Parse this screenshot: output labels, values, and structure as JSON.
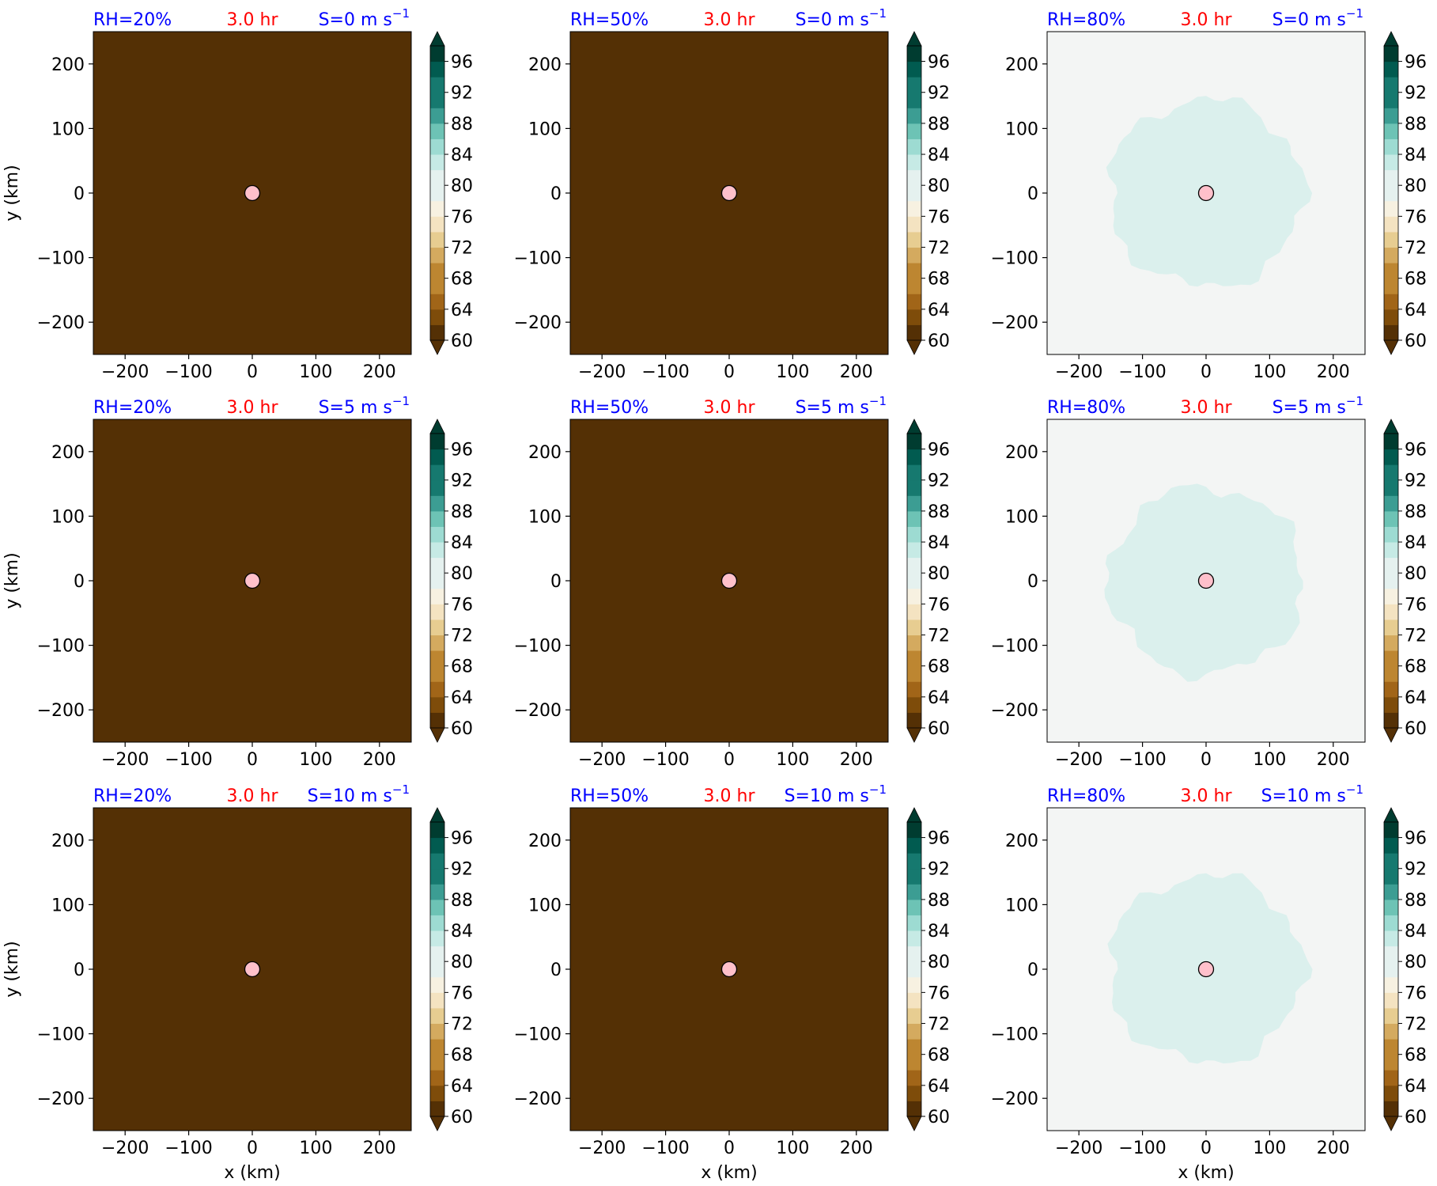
{
  "figure": {
    "xlabel": "x (km)",
    "ylabel": "y (km)",
    "time_label": "3.0 hr",
    "colors": {
      "header_blue": "#0000ff",
      "header_red": "#ff0000",
      "marker_fill": "#ffc0cb",
      "marker_edge": "#000000",
      "dry_fill": "#543005",
      "moist_background": "#f3f5f4",
      "moist_core": "#dbf0ed"
    },
    "colorbar_colors": [
      "#543005",
      "#7e4c0a",
      "#a16518",
      "#bd8631",
      "#d4aa5f",
      "#e7cd91",
      "#f4e3c1",
      "#f7f1e1",
      "#e5f1ef",
      "#c6eae5",
      "#9ddbd2",
      "#6dc3b5",
      "#3c9d93",
      "#16796f",
      "#015b50",
      "#003c30"
    ],
    "colorbar_ticks": [
      "60",
      "64",
      "68",
      "72",
      "76",
      "80",
      "84",
      "88",
      "92",
      "96"
    ]
  },
  "chart_data": [
    {
      "type": "heatmap",
      "rh": "RH=20%",
      "time": "3.0 hr",
      "shear": "S=0",
      "unit": "m s",
      "exponent": "−1",
      "xlabel": "",
      "ylabel": "y (km)",
      "xlim": [
        -250,
        250
      ],
      "ylim": [
        -250,
        250
      ],
      "xticks": [
        "−200",
        "−100",
        "0",
        "100",
        "200"
      ],
      "yticks": [
        "−200",
        "−100",
        "0",
        "100",
        "200"
      ],
      "field": "uniform",
      "fill_level": "<60",
      "center_marker": [
        0,
        0
      ],
      "colorbar": {
        "levels": [
          60,
          62,
          64,
          66,
          68,
          70,
          72,
          74,
          76,
          78,
          80,
          82,
          84,
          86,
          88,
          90,
          92,
          94,
          96,
          98
        ],
        "ticks": [
          60,
          64,
          68,
          72,
          76,
          80,
          84,
          88,
          92,
          96
        ],
        "extend": "both"
      }
    },
    {
      "type": "heatmap",
      "rh": "RH=50%",
      "time": "3.0 hr",
      "shear": "S=0",
      "unit": "m s",
      "exponent": "−1",
      "xlabel": "",
      "ylabel": "",
      "xlim": [
        -250,
        250
      ],
      "ylim": [
        -250,
        250
      ],
      "xticks": [
        "−200",
        "−100",
        "0",
        "100",
        "200"
      ],
      "yticks": [
        "−200",
        "−100",
        "0",
        "100",
        "200"
      ],
      "field": "uniform",
      "fill_level": "<60",
      "center_marker": [
        0,
        0
      ],
      "colorbar": {
        "levels": [
          60,
          62,
          64,
          66,
          68,
          70,
          72,
          74,
          76,
          78,
          80,
          82,
          84,
          86,
          88,
          90,
          92,
          94,
          96,
          98
        ],
        "ticks": [
          60,
          64,
          68,
          72,
          76,
          80,
          84,
          88,
          92,
          96
        ],
        "extend": "both"
      }
    },
    {
      "type": "heatmap",
      "rh": "RH=80%",
      "time": "3.0 hr",
      "shear": "S=0",
      "unit": "m s",
      "exponent": "−1",
      "xlabel": "",
      "ylabel": "",
      "xlim": [
        -250,
        250
      ],
      "ylim": [
        -250,
        250
      ],
      "xticks": [
        "−200",
        "−100",
        "0",
        "100",
        "200"
      ],
      "yticks": [
        "−200",
        "−100",
        "0",
        "100",
        "200"
      ],
      "field": "moist_core",
      "background_level": "80-82",
      "core_level": "82-84",
      "core_radius_km": 150,
      "center_marker": [
        0,
        0
      ],
      "colorbar": {
        "levels": [
          60,
          62,
          64,
          66,
          68,
          70,
          72,
          74,
          76,
          78,
          80,
          82,
          84,
          86,
          88,
          90,
          92,
          94,
          96,
          98
        ],
        "ticks": [
          60,
          64,
          68,
          72,
          76,
          80,
          84,
          88,
          92,
          96
        ],
        "extend": "both"
      }
    },
    {
      "type": "heatmap",
      "rh": "RH=20%",
      "time": "3.0 hr",
      "shear": "S=5",
      "unit": "m s",
      "exponent": "−1",
      "xlabel": "",
      "ylabel": "y (km)",
      "xlim": [
        -250,
        250
      ],
      "ylim": [
        -250,
        250
      ],
      "xticks": [
        "−200",
        "−100",
        "0",
        "100",
        "200"
      ],
      "yticks": [
        "−200",
        "−100",
        "0",
        "100",
        "200"
      ],
      "field": "uniform",
      "fill_level": "<60",
      "center_marker": [
        0,
        0
      ],
      "colorbar": {
        "levels": [
          60,
          62,
          64,
          66,
          68,
          70,
          72,
          74,
          76,
          78,
          80,
          82,
          84,
          86,
          88,
          90,
          92,
          94,
          96,
          98
        ],
        "ticks": [
          60,
          64,
          68,
          72,
          76,
          80,
          84,
          88,
          92,
          96
        ],
        "extend": "both"
      }
    },
    {
      "type": "heatmap",
      "rh": "RH=50%",
      "time": "3.0 hr",
      "shear": "S=5",
      "unit": "m s",
      "exponent": "−1",
      "xlabel": "",
      "ylabel": "",
      "xlim": [
        -250,
        250
      ],
      "ylim": [
        -250,
        250
      ],
      "xticks": [
        "−200",
        "−100",
        "0",
        "100",
        "200"
      ],
      "yticks": [
        "−200",
        "−100",
        "0",
        "100",
        "200"
      ],
      "field": "uniform",
      "fill_level": "<60",
      "center_marker": [
        0,
        0
      ],
      "colorbar": {
        "levels": [
          60,
          62,
          64,
          66,
          68,
          70,
          72,
          74,
          76,
          78,
          80,
          82,
          84,
          86,
          88,
          90,
          92,
          94,
          96,
          98
        ],
        "ticks": [
          60,
          64,
          68,
          72,
          76,
          80,
          84,
          88,
          92,
          96
        ],
        "extend": "both"
      }
    },
    {
      "type": "heatmap",
      "rh": "RH=80%",
      "time": "3.0 hr",
      "shear": "S=5",
      "unit": "m s",
      "exponent": "−1",
      "xlabel": "",
      "ylabel": "",
      "xlim": [
        -250,
        250
      ],
      "ylim": [
        -250,
        250
      ],
      "xticks": [
        "−200",
        "−100",
        "0",
        "100",
        "200"
      ],
      "yticks": [
        "−200",
        "−100",
        "0",
        "100",
        "200"
      ],
      "field": "moist_core",
      "background_level": "80-82",
      "core_level": "82-84",
      "core_radius_km": 150,
      "center_marker": [
        0,
        0
      ],
      "colorbar": {
        "levels": [
          60,
          62,
          64,
          66,
          68,
          70,
          72,
          74,
          76,
          78,
          80,
          82,
          84,
          86,
          88,
          90,
          92,
          94,
          96,
          98
        ],
        "ticks": [
          60,
          64,
          68,
          72,
          76,
          80,
          84,
          88,
          92,
          96
        ],
        "extend": "both"
      }
    },
    {
      "type": "heatmap",
      "rh": "RH=20%",
      "time": "3.0 hr",
      "shear": "S=10",
      "unit": "m s",
      "exponent": "−1",
      "xlabel": "x (km)",
      "ylabel": "y (km)",
      "xlim": [
        -250,
        250
      ],
      "ylim": [
        -250,
        250
      ],
      "xticks": [
        "−200",
        "−100",
        "0",
        "100",
        "200"
      ],
      "yticks": [
        "−200",
        "−100",
        "0",
        "100",
        "200"
      ],
      "field": "uniform",
      "fill_level": "<60",
      "center_marker": [
        0,
        0
      ],
      "colorbar": {
        "levels": [
          60,
          62,
          64,
          66,
          68,
          70,
          72,
          74,
          76,
          78,
          80,
          82,
          84,
          86,
          88,
          90,
          92,
          94,
          96,
          98
        ],
        "ticks": [
          60,
          64,
          68,
          72,
          76,
          80,
          84,
          88,
          92,
          96
        ],
        "extend": "both"
      }
    },
    {
      "type": "heatmap",
      "rh": "RH=50%",
      "time": "3.0 hr",
      "shear": "S=10",
      "unit": "m s",
      "exponent": "−1",
      "xlabel": "x (km)",
      "ylabel": "",
      "xlim": [
        -250,
        250
      ],
      "ylim": [
        -250,
        250
      ],
      "xticks": [
        "−200",
        "−100",
        "0",
        "100",
        "200"
      ],
      "yticks": [
        "−200",
        "−100",
        "0",
        "100",
        "200"
      ],
      "field": "uniform",
      "fill_level": "<60",
      "center_marker": [
        0,
        0
      ],
      "colorbar": {
        "levels": [
          60,
          62,
          64,
          66,
          68,
          70,
          72,
          74,
          76,
          78,
          80,
          82,
          84,
          86,
          88,
          90,
          92,
          94,
          96,
          98
        ],
        "ticks": [
          60,
          64,
          68,
          72,
          76,
          80,
          84,
          88,
          92,
          96
        ],
        "extend": "both"
      }
    },
    {
      "type": "heatmap",
      "rh": "RH=80%",
      "time": "3.0 hr",
      "shear": "S=10",
      "unit": "m s",
      "exponent": "−1",
      "xlabel": "x (km)",
      "ylabel": "",
      "xlim": [
        -250,
        250
      ],
      "ylim": [
        -250,
        250
      ],
      "xticks": [
        "−200",
        "−100",
        "0",
        "100",
        "200"
      ],
      "yticks": [
        "−200",
        "−100",
        "0",
        "100",
        "200"
      ],
      "field": "moist_core",
      "background_level": "80-82",
      "core_level": "82-84",
      "core_radius_km": 150,
      "center_marker": [
        0,
        0
      ],
      "colorbar": {
        "levels": [
          60,
          62,
          64,
          66,
          68,
          70,
          72,
          74,
          76,
          78,
          80,
          82,
          84,
          86,
          88,
          90,
          92,
          94,
          96,
          98
        ],
        "ticks": [
          60,
          64,
          68,
          72,
          76,
          80,
          84,
          88,
          92,
          96
        ],
        "extend": "both"
      }
    }
  ]
}
